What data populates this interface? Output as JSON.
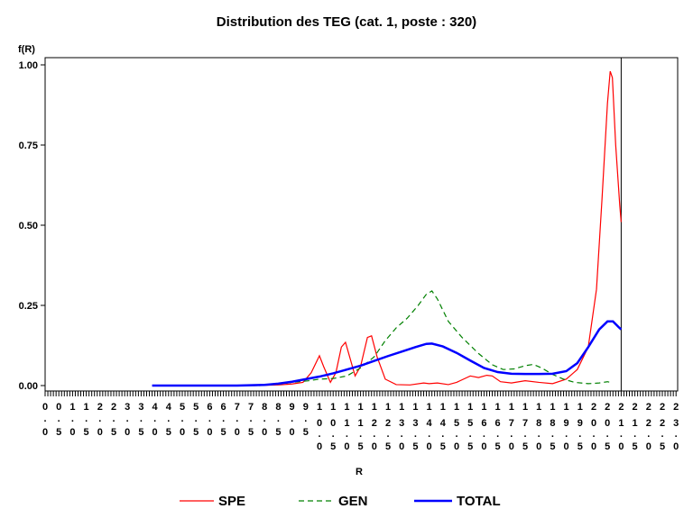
{
  "chart_data": {
    "type": "line",
    "title": "Distribution des TEG (cat. 1, poste : 320)",
    "xlabel": "R",
    "ylabel": "f(R)",
    "xlim": [
      0,
      23
    ],
    "ylim": [
      0,
      1
    ],
    "y_ticks": [
      {
        "value": 0,
        "label": "0.00"
      },
      {
        "value": 0.25,
        "label": "0.25"
      },
      {
        "value": 0.5,
        "label": "0.50"
      },
      {
        "value": 0.75,
        "label": "0.75"
      },
      {
        "value": 1.0,
        "label": "1.00"
      }
    ],
    "x_tick_labels": [
      "0",
      "0.5",
      "1",
      "1.5",
      "2",
      "2.5",
      "3",
      "3.5",
      "4",
      "4.5",
      "5",
      "5.5",
      "6",
      "6.5",
      "7",
      "7.5",
      "8",
      "8.5",
      "9",
      "9.5",
      "10",
      "10.5",
      "11",
      "11.5",
      "12",
      "12.5",
      "13",
      "13.5",
      "14",
      "14.5",
      "15",
      "15.5",
      "16",
      "16.5",
      "17",
      "17.5",
      "18",
      "18.5",
      "19",
      "19.5",
      "20",
      "20.5",
      "21",
      "21.5",
      "22",
      "22.5",
      "23"
    ],
    "vertical_reference_line": 21,
    "grid": false,
    "legend_position": "bottom",
    "series": [
      {
        "name": "SPE",
        "color": "#ff0000",
        "style": "solid",
        "points": [
          [
            7.6,
            0.0
          ],
          [
            8.5,
            0.002
          ],
          [
            9.0,
            0.005
          ],
          [
            9.4,
            0.01
          ],
          [
            9.7,
            0.04
          ],
          [
            10.0,
            0.093
          ],
          [
            10.15,
            0.06
          ],
          [
            10.4,
            0.01
          ],
          [
            10.6,
            0.04
          ],
          [
            10.8,
            0.12
          ],
          [
            10.95,
            0.135
          ],
          [
            11.1,
            0.09
          ],
          [
            11.3,
            0.03
          ],
          [
            11.5,
            0.06
          ],
          [
            11.75,
            0.15
          ],
          [
            11.9,
            0.155
          ],
          [
            12.1,
            0.09
          ],
          [
            12.4,
            0.02
          ],
          [
            12.8,
            0.003
          ],
          [
            13.3,
            0.002
          ],
          [
            13.8,
            0.008
          ],
          [
            14.0,
            0.006
          ],
          [
            14.3,
            0.008
          ],
          [
            14.7,
            0.003
          ],
          [
            15.0,
            0.01
          ],
          [
            15.5,
            0.03
          ],
          [
            15.8,
            0.025
          ],
          [
            16.1,
            0.032
          ],
          [
            16.3,
            0.03
          ],
          [
            16.6,
            0.012
          ],
          [
            17.0,
            0.008
          ],
          [
            17.5,
            0.015
          ],
          [
            18.0,
            0.01
          ],
          [
            18.5,
            0.006
          ],
          [
            19.0,
            0.02
          ],
          [
            19.4,
            0.05
          ],
          [
            19.8,
            0.12
          ],
          [
            20.1,
            0.3
          ],
          [
            20.3,
            0.58
          ],
          [
            20.5,
            0.88
          ],
          [
            20.6,
            0.98
          ],
          [
            20.68,
            0.96
          ],
          [
            20.8,
            0.75
          ],
          [
            20.95,
            0.56
          ],
          [
            21.0,
            0.51
          ]
        ]
      },
      {
        "name": "GEN",
        "color": "#008000",
        "style": "dashed",
        "points": [
          [
            7.8,
            0.0
          ],
          [
            8.5,
            0.004
          ],
          [
            9.0,
            0.01
          ],
          [
            9.6,
            0.015
          ],
          [
            10.0,
            0.02
          ],
          [
            10.5,
            0.022
          ],
          [
            11.0,
            0.03
          ],
          [
            11.5,
            0.055
          ],
          [
            12.0,
            0.09
          ],
          [
            12.4,
            0.14
          ],
          [
            12.8,
            0.18
          ],
          [
            13.2,
            0.21
          ],
          [
            13.6,
            0.25
          ],
          [
            13.9,
            0.285
          ],
          [
            14.1,
            0.295
          ],
          [
            14.3,
            0.27
          ],
          [
            14.7,
            0.2
          ],
          [
            15.2,
            0.15
          ],
          [
            15.8,
            0.1
          ],
          [
            16.3,
            0.065
          ],
          [
            16.7,
            0.05
          ],
          [
            17.1,
            0.052
          ],
          [
            17.5,
            0.062
          ],
          [
            17.8,
            0.066
          ],
          [
            18.1,
            0.055
          ],
          [
            18.5,
            0.035
          ],
          [
            18.9,
            0.02
          ],
          [
            19.3,
            0.01
          ],
          [
            19.8,
            0.006
          ],
          [
            20.2,
            0.008
          ],
          [
            20.5,
            0.012
          ],
          [
            20.6,
            0.01
          ]
        ]
      },
      {
        "name": "TOTAL",
        "color": "#0000ff",
        "style": "solid",
        "points": [
          [
            3.9,
            0.0
          ],
          [
            5.0,
            0.0
          ],
          [
            6.0,
            0.0
          ],
          [
            7.0,
            0.0
          ],
          [
            8.0,
            0.002
          ],
          [
            8.5,
            0.006
          ],
          [
            9.0,
            0.012
          ],
          [
            9.5,
            0.02
          ],
          [
            10.0,
            0.028
          ],
          [
            10.5,
            0.038
          ],
          [
            11.0,
            0.05
          ],
          [
            11.5,
            0.062
          ],
          [
            12.0,
            0.077
          ],
          [
            12.5,
            0.092
          ],
          [
            13.0,
            0.106
          ],
          [
            13.5,
            0.12
          ],
          [
            13.9,
            0.13
          ],
          [
            14.1,
            0.131
          ],
          [
            14.5,
            0.122
          ],
          [
            15.0,
            0.102
          ],
          [
            15.5,
            0.078
          ],
          [
            16.0,
            0.055
          ],
          [
            16.5,
            0.042
          ],
          [
            17.0,
            0.037
          ],
          [
            17.5,
            0.036
          ],
          [
            18.0,
            0.036
          ],
          [
            18.5,
            0.037
          ],
          [
            19.0,
            0.045
          ],
          [
            19.4,
            0.07
          ],
          [
            19.8,
            0.12
          ],
          [
            20.2,
            0.175
          ],
          [
            20.5,
            0.2
          ],
          [
            20.7,
            0.2
          ],
          [
            20.9,
            0.183
          ],
          [
            21.0,
            0.175
          ]
        ]
      }
    ]
  }
}
